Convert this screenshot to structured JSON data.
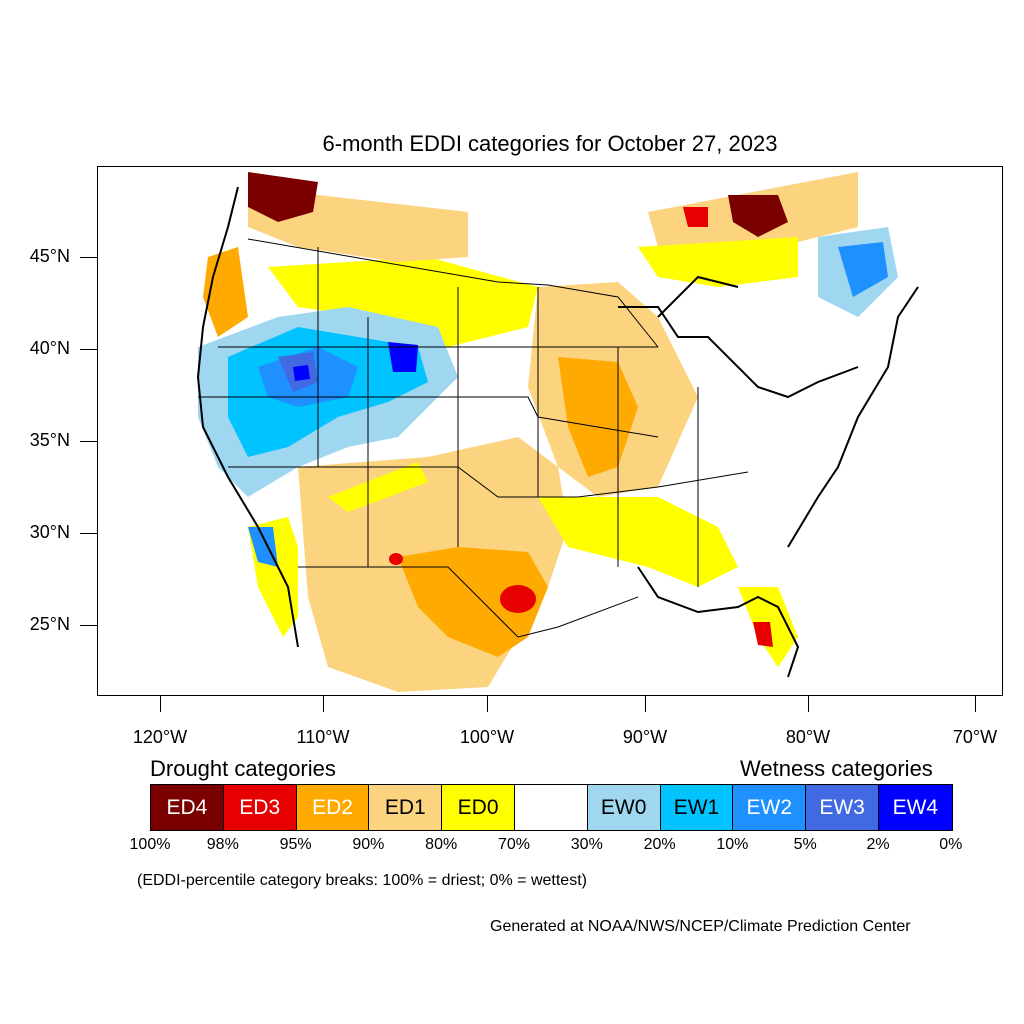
{
  "title": "6-month EDDI categories for October 27, 2023",
  "latitude_labels": [
    "45°N",
    "40°N",
    "35°N",
    "30°N",
    "25°N"
  ],
  "longitude_labels": [
    "120°W",
    "110°W",
    "100°W",
    "90°W",
    "80°W",
    "70°W"
  ],
  "legend": {
    "drought_heading": "Drought categories",
    "wetness_heading": "Wetness categories",
    "categories": [
      {
        "label": "ED4",
        "color": "#7a0000",
        "text_color": "#ffffff"
      },
      {
        "label": "ED3",
        "color": "#e60000",
        "text_color": "#ffffff"
      },
      {
        "label": "ED2",
        "color": "#ffaa00",
        "text_color": "#ffffff"
      },
      {
        "label": "ED1",
        "color": "#fcd37f",
        "text_color": "#000000"
      },
      {
        "label": "ED0",
        "color": "#ffff00",
        "text_color": "#000000"
      },
      {
        "label": "",
        "color": "#ffffff",
        "text_color": "#000000"
      },
      {
        "label": "EW0",
        "color": "#9fd6f0",
        "text_color": "#000000"
      },
      {
        "label": "EW1",
        "color": "#00c3ff",
        "text_color": "#000000"
      },
      {
        "label": "EW2",
        "color": "#1e90ff",
        "text_color": "#ffffff"
      },
      {
        "label": "EW3",
        "color": "#4169e1",
        "text_color": "#ffffff"
      },
      {
        "label": "EW4",
        "color": "#0000ff",
        "text_color": "#ffffff"
      }
    ],
    "percentiles": [
      "100%",
      "98%",
      "95%",
      "90%",
      "80%",
      "70%",
      "30%",
      "20%",
      "10%",
      "5%",
      "2%",
      "0%"
    ]
  },
  "note": "(EDDI-percentile category breaks: 100% = driest; 0% = wettest)",
  "credit": "Generated at NOAA/NWS/NCEP/Climate Prediction Center"
}
